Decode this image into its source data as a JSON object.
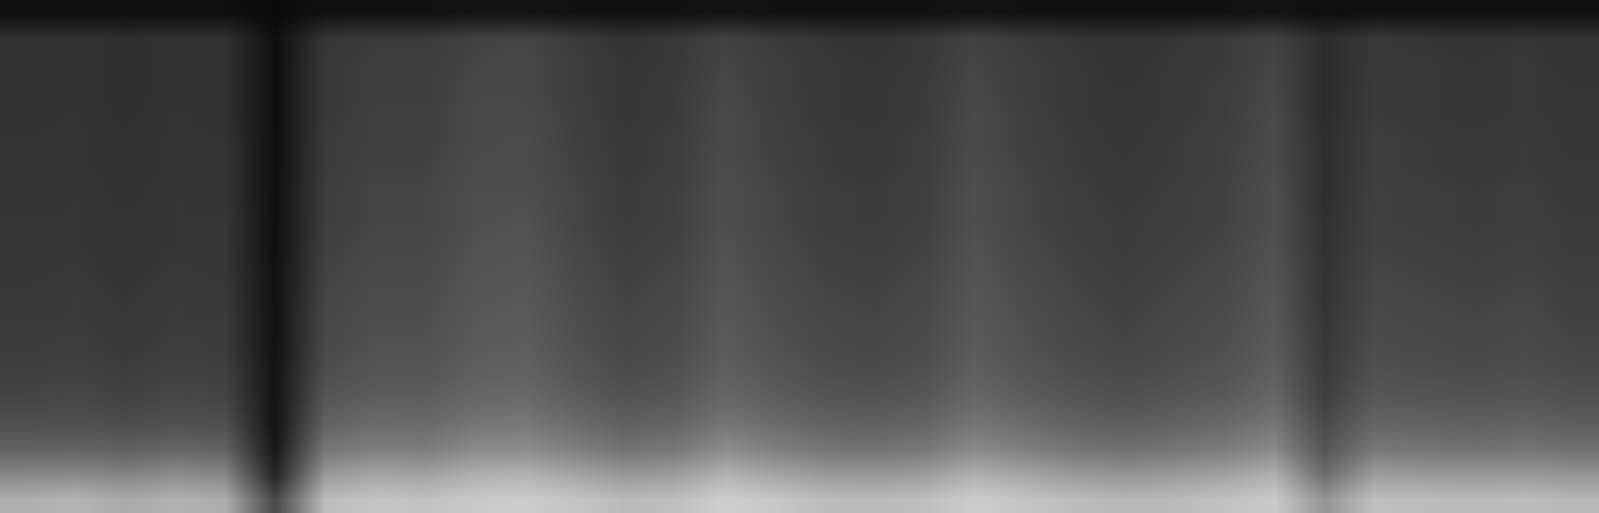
{
  "chart_data": {
    "type": "heatmap",
    "tick_labels": false,
    "grid": false,
    "xlim": [
      -0.5,
      31.5
    ],
    "ylim": [
      -0.5,
      19.5
    ],
    "color_range": [
      0,
      100
    ],
    "cells": [
      [
        70,
        72,
        68,
        71,
        69,
        30,
        75,
        78,
        77,
        80,
        81,
        78,
        74,
        76,
        82,
        79,
        75,
        74,
        76,
        81,
        78,
        75,
        73,
        74,
        77,
        80,
        60,
        76,
        75,
        74,
        75,
        73
      ],
      [
        55,
        56,
        54,
        57,
        55,
        15,
        62,
        66,
        65,
        70,
        71,
        66,
        61,
        63,
        71,
        66,
        62,
        61,
        63,
        70,
        66,
        62,
        60,
        62,
        65,
        70,
        45,
        63,
        62,
        61,
        62,
        60
      ],
      [
        40,
        41,
        39,
        42,
        40,
        10,
        48,
        52,
        51,
        56,
        57,
        52,
        47,
        49,
        57,
        52,
        48,
        47,
        49,
        56,
        52,
        48,
        46,
        48,
        51,
        56,
        35,
        49,
        48,
        47,
        48,
        46
      ],
      [
        32,
        33,
        31,
        33,
        32,
        8,
        40,
        44,
        43,
        48,
        49,
        44,
        39,
        41,
        48,
        44,
        40,
        39,
        41,
        48,
        44,
        40,
        38,
        40,
        43,
        48,
        30,
        41,
        40,
        39,
        40,
        38
      ],
      [
        28,
        29,
        27,
        29,
        28,
        8,
        35,
        38,
        38,
        42,
        43,
        38,
        34,
        36,
        42,
        38,
        35,
        34,
        36,
        42,
        38,
        35,
        33,
        35,
        37,
        42,
        26,
        36,
        35,
        34,
        35,
        33
      ],
      [
        26,
        27,
        25,
        27,
        26,
        8,
        32,
        35,
        35,
        39,
        40,
        35,
        31,
        33,
        39,
        35,
        32,
        31,
        33,
        39,
        35,
        32,
        30,
        32,
        34,
        39,
        24,
        33,
        32,
        31,
        32,
        30
      ],
      [
        24,
        25,
        23,
        25,
        24,
        7,
        30,
        33,
        33,
        37,
        38,
        33,
        29,
        31,
        37,
        33,
        30,
        29,
        31,
        37,
        33,
        30,
        28,
        30,
        32,
        37,
        23,
        31,
        30,
        29,
        30,
        28
      ],
      [
        24,
        24,
        23,
        24,
        24,
        7,
        29,
        32,
        32,
        36,
        37,
        32,
        28,
        30,
        36,
        32,
        29,
        28,
        30,
        36,
        32,
        29,
        27,
        29,
        31,
        36,
        22,
        30,
        29,
        28,
        29,
        27
      ],
      [
        23,
        24,
        22,
        24,
        23,
        7,
        28,
        31,
        31,
        35,
        36,
        31,
        27,
        29,
        35,
        31,
        28,
        27,
        29,
        35,
        31,
        28,
        26,
        28,
        30,
        35,
        21,
        29,
        28,
        27,
        28,
        26
      ],
      [
        22,
        23,
        21,
        23,
        22,
        7,
        27,
        30,
        30,
        34,
        35,
        30,
        26,
        28,
        34,
        30,
        27,
        26,
        28,
        34,
        30,
        27,
        25,
        27,
        29,
        34,
        21,
        28,
        27,
        26,
        27,
        25
      ],
      [
        22,
        22,
        21,
        22,
        22,
        6,
        26,
        29,
        29,
        33,
        34,
        29,
        25,
        27,
        33,
        29,
        26,
        25,
        27,
        33,
        29,
        26,
        24,
        26,
        28,
        33,
        20,
        27,
        26,
        25,
        26,
        24
      ],
      [
        22,
        22,
        21,
        22,
        22,
        6,
        25,
        28,
        28,
        32,
        33,
        28,
        24,
        26,
        32,
        28,
        25,
        24,
        26,
        32,
        28,
        25,
        24,
        25,
        27,
        32,
        20,
        26,
        25,
        24,
        25,
        24
      ],
      [
        21,
        22,
        20,
        22,
        21,
        6,
        25,
        28,
        28,
        32,
        32,
        28,
        24,
        26,
        32,
        28,
        25,
        24,
        26,
        32,
        28,
        25,
        23,
        25,
        27,
        32,
        19,
        26,
        25,
        24,
        25,
        23
      ],
      [
        21,
        21,
        20,
        21,
        21,
        6,
        24,
        27,
        27,
        31,
        31,
        27,
        23,
        25,
        31,
        27,
        24,
        23,
        25,
        31,
        27,
        24,
        23,
        24,
        26,
        31,
        19,
        25,
        24,
        23,
        24,
        23
      ],
      [
        21,
        21,
        20,
        21,
        21,
        6,
        24,
        26,
        26,
        30,
        31,
        26,
        23,
        25,
        30,
        26,
        24,
        23,
        25,
        30,
        26,
        24,
        22,
        24,
        26,
        30,
        19,
        25,
        24,
        23,
        24,
        22
      ],
      [
        20,
        21,
        19,
        21,
        20,
        6,
        23,
        26,
        26,
        30,
        30,
        26,
        22,
        24,
        30,
        26,
        23,
        22,
        24,
        30,
        26,
        23,
        22,
        23,
        25,
        30,
        18,
        24,
        23,
        22,
        23,
        22
      ],
      [
        20,
        20,
        19,
        20,
        20,
        6,
        23,
        25,
        25,
        29,
        29,
        25,
        22,
        24,
        29,
        25,
        23,
        22,
        24,
        29,
        25,
        23,
        22,
        23,
        25,
        29,
        18,
        24,
        23,
        22,
        23,
        22
      ],
      [
        20,
        20,
        19,
        20,
        20,
        6,
        23,
        25,
        25,
        28,
        29,
        25,
        22,
        23,
        28,
        25,
        23,
        22,
        23,
        28,
        25,
        23,
        21,
        23,
        24,
        28,
        18,
        23,
        23,
        22,
        23,
        21
      ],
      [
        20,
        20,
        19,
        20,
        20,
        6,
        22,
        24,
        24,
        27,
        28,
        24,
        21,
        23,
        27,
        24,
        22,
        21,
        23,
        27,
        24,
        22,
        21,
        22,
        24,
        27,
        18,
        23,
        22,
        21,
        22,
        21
      ],
      [
        6,
        6,
        6,
        6,
        6,
        4,
        7,
        7,
        7,
        8,
        8,
        7,
        7,
        7,
        8,
        7,
        7,
        7,
        7,
        8,
        7,
        7,
        7,
        7,
        7,
        8,
        6,
        7,
        7,
        7,
        7,
        7
      ]
    ]
  }
}
